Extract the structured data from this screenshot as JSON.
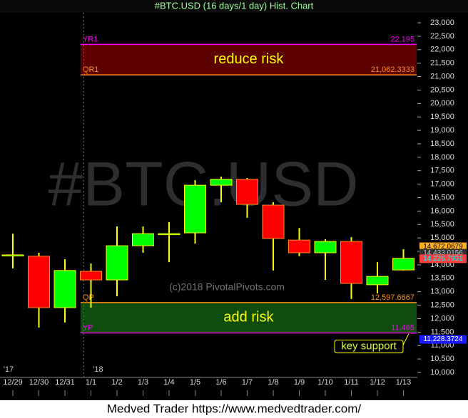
{
  "chart_data": {
    "type": "candlestick",
    "title": "#BTC.USD (16 days/1 day) Hist. Chart",
    "watermark": "#BTC.USD",
    "copyright": "(c)2018 PivotalPivots.com",
    "footer": "Medved Trader https://www.medvedtrader.com/",
    "categories": [
      "12/29",
      "12/30",
      "12/31",
      "1/1",
      "1/2",
      "1/3",
      "1/4",
      "1/5",
      "1/6",
      "1/7",
      "1/8",
      "1/9",
      "1/10",
      "1/11",
      "1/12",
      "1/13"
    ],
    "year_labels": [
      {
        "index": 0,
        "label": "'17"
      },
      {
        "index": 3,
        "label": "'18"
      }
    ],
    "open": [
      14370,
      14320,
      12410,
      13760,
      13440,
      14710,
      15130,
      15190,
      16960,
      17180,
      16220,
      14920,
      14450,
      14870,
      13260,
      13810
    ],
    "high": [
      15160,
      14450,
      14210,
      14050,
      15430,
      15430,
      15590,
      17150,
      17280,
      17230,
      16330,
      15370,
      14950,
      15030,
      14100,
      14580
    ],
    "low": [
      13870,
      11670,
      11860,
      12410,
      12830,
      14450,
      14100,
      14790,
      16330,
      15750,
      13790,
      14320,
      13440,
      12730,
      12940,
      13790
    ],
    "close": [
      14370,
      12410,
      13790,
      13440,
      14710,
      15160,
      15160,
      16960,
      17180,
      16250,
      14980,
      14450,
      14870,
      13310,
      13570,
      14240
    ],
    "up_color": "#00ff00",
    "down_color": "#ff0000",
    "ylim": [
      9750,
      23250
    ],
    "yticks": [
      {
        "value": 10000,
        "label": "10,000"
      },
      {
        "value": 10500,
        "label": "10,500"
      },
      {
        "value": 11000,
        "label": "11,000"
      },
      {
        "value": 11500,
        "label": "11,500"
      },
      {
        "value": 12000,
        "label": "12,000"
      },
      {
        "value": 12500,
        "label": "12,500"
      },
      {
        "value": 13000,
        "label": "13,000"
      },
      {
        "value": 13500,
        "label": "13,500"
      },
      {
        "value": 14000,
        "label": "14,000"
      },
      {
        "value": 14500,
        "label": "14,500"
      },
      {
        "value": 15000,
        "label": "15,000"
      },
      {
        "value": 15500,
        "label": "15,500"
      },
      {
        "value": 16000,
        "label": "16,000"
      },
      {
        "value": 16500,
        "label": "16,500"
      },
      {
        "value": 17000,
        "label": "17,000"
      },
      {
        "value": 17500,
        "label": "17,500"
      },
      {
        "value": 18000,
        "label": "18,000"
      },
      {
        "value": 18500,
        "label": "18,500"
      },
      {
        "value": 19000,
        "label": "19,000"
      },
      {
        "value": 19500,
        "label": "19,500"
      },
      {
        "value": 20000,
        "label": "20,000"
      },
      {
        "value": 20500,
        "label": "20,500"
      },
      {
        "value": 21000,
        "label": "21,000"
      },
      {
        "value": 21500,
        "label": "21,500"
      },
      {
        "value": 22000,
        "label": "22,000"
      },
      {
        "value": 22500,
        "label": "22,500"
      },
      {
        "value": 23000,
        "label": "23,000"
      }
    ],
    "zones": [
      {
        "text": "reduce risk",
        "top": {
          "name": "YR1",
          "value": 22195,
          "label": "22,195",
          "color": "#ff00ff"
        },
        "bottom": {
          "name": "QR1",
          "value": 21062.3333,
          "label": "21,062.3333",
          "color": "#ff8c1a"
        },
        "fill": "#5c0000"
      },
      {
        "text": "add risk",
        "top": {
          "name": "QP",
          "value": 12597.6667,
          "label": "12,597.6667",
          "color": "#ff8c1a"
        },
        "bottom": {
          "name": "YP",
          "value": 11465,
          "label": "11,465",
          "color": "#ff00ff"
        },
        "fill": "#0f4d0f"
      }
    ],
    "price_tags": [
      {
        "value": 14672.0679,
        "label": "14,672.0679",
        "color": "#ffb020",
        "text_color": "#000000"
      },
      {
        "value": 14433.0156,
        "label": "14,433.0156",
        "color": "#303030",
        "text_color": "#c0c0c0"
      },
      {
        "value": 14226.7931,
        "label": "14,226.7931",
        "color": "#ff4040",
        "text_color": "#00ffff"
      },
      {
        "value": 11228.3724,
        "label": "11,228.3724",
        "color": "#1a1aff",
        "text_color": "#ffffff"
      }
    ],
    "annotation": {
      "text": "key support",
      "value": 11228.3724,
      "index": 14
    }
  }
}
